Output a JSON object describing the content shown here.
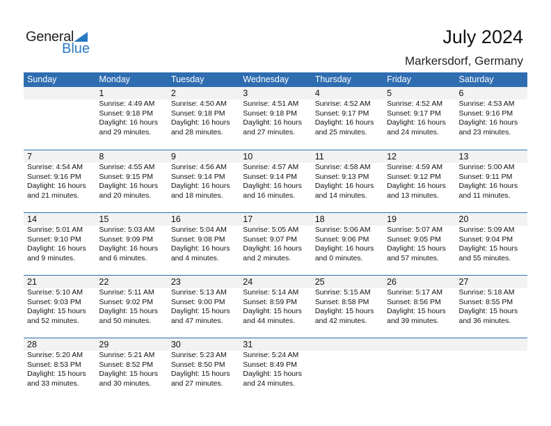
{
  "logo": {
    "general": "General",
    "blue": "Blue"
  },
  "title": "July 2024",
  "location": "Markersdorf, Germany",
  "colors": {
    "header": "#2f6db1",
    "logo_blue": "#2a7ac0",
    "band": "#f2f2f2"
  },
  "weekdays": [
    "Sunday",
    "Monday",
    "Tuesday",
    "Wednesday",
    "Thursday",
    "Friday",
    "Saturday"
  ],
  "weeks": [
    [
      null,
      {
        "day": "1",
        "sunrise": "Sunrise: 4:49 AM",
        "sunset": "Sunset: 9:18 PM",
        "daylight1": "Daylight: 16 hours",
        "daylight2": "and 29 minutes."
      },
      {
        "day": "2",
        "sunrise": "Sunrise: 4:50 AM",
        "sunset": "Sunset: 9:18 PM",
        "daylight1": "Daylight: 16 hours",
        "daylight2": "and 28 minutes."
      },
      {
        "day": "3",
        "sunrise": "Sunrise: 4:51 AM",
        "sunset": "Sunset: 9:18 PM",
        "daylight1": "Daylight: 16 hours",
        "daylight2": "and 27 minutes."
      },
      {
        "day": "4",
        "sunrise": "Sunrise: 4:52 AM",
        "sunset": "Sunset: 9:17 PM",
        "daylight1": "Daylight: 16 hours",
        "daylight2": "and 25 minutes."
      },
      {
        "day": "5",
        "sunrise": "Sunrise: 4:52 AM",
        "sunset": "Sunset: 9:17 PM",
        "daylight1": "Daylight: 16 hours",
        "daylight2": "and 24 minutes."
      },
      {
        "day": "6",
        "sunrise": "Sunrise: 4:53 AM",
        "sunset": "Sunset: 9:16 PM",
        "daylight1": "Daylight: 16 hours",
        "daylight2": "and 23 minutes."
      }
    ],
    [
      {
        "day": "7",
        "sunrise": "Sunrise: 4:54 AM",
        "sunset": "Sunset: 9:16 PM",
        "daylight1": "Daylight: 16 hours",
        "daylight2": "and 21 minutes."
      },
      {
        "day": "8",
        "sunrise": "Sunrise: 4:55 AM",
        "sunset": "Sunset: 9:15 PM",
        "daylight1": "Daylight: 16 hours",
        "daylight2": "and 20 minutes."
      },
      {
        "day": "9",
        "sunrise": "Sunrise: 4:56 AM",
        "sunset": "Sunset: 9:14 PM",
        "daylight1": "Daylight: 16 hours",
        "daylight2": "and 18 minutes."
      },
      {
        "day": "10",
        "sunrise": "Sunrise: 4:57 AM",
        "sunset": "Sunset: 9:14 PM",
        "daylight1": "Daylight: 16 hours",
        "daylight2": "and 16 minutes."
      },
      {
        "day": "11",
        "sunrise": "Sunrise: 4:58 AM",
        "sunset": "Sunset: 9:13 PM",
        "daylight1": "Daylight: 16 hours",
        "daylight2": "and 14 minutes."
      },
      {
        "day": "12",
        "sunrise": "Sunrise: 4:59 AM",
        "sunset": "Sunset: 9:12 PM",
        "daylight1": "Daylight: 16 hours",
        "daylight2": "and 13 minutes."
      },
      {
        "day": "13",
        "sunrise": "Sunrise: 5:00 AM",
        "sunset": "Sunset: 9:11 PM",
        "daylight1": "Daylight: 16 hours",
        "daylight2": "and 11 minutes."
      }
    ],
    [
      {
        "day": "14",
        "sunrise": "Sunrise: 5:01 AM",
        "sunset": "Sunset: 9:10 PM",
        "daylight1": "Daylight: 16 hours",
        "daylight2": "and 9 minutes."
      },
      {
        "day": "15",
        "sunrise": "Sunrise: 5:03 AM",
        "sunset": "Sunset: 9:09 PM",
        "daylight1": "Daylight: 16 hours",
        "daylight2": "and 6 minutes."
      },
      {
        "day": "16",
        "sunrise": "Sunrise: 5:04 AM",
        "sunset": "Sunset: 9:08 PM",
        "daylight1": "Daylight: 16 hours",
        "daylight2": "and 4 minutes."
      },
      {
        "day": "17",
        "sunrise": "Sunrise: 5:05 AM",
        "sunset": "Sunset: 9:07 PM",
        "daylight1": "Daylight: 16 hours",
        "daylight2": "and 2 minutes."
      },
      {
        "day": "18",
        "sunrise": "Sunrise: 5:06 AM",
        "sunset": "Sunset: 9:06 PM",
        "daylight1": "Daylight: 16 hours",
        "daylight2": "and 0 minutes."
      },
      {
        "day": "19",
        "sunrise": "Sunrise: 5:07 AM",
        "sunset": "Sunset: 9:05 PM",
        "daylight1": "Daylight: 15 hours",
        "daylight2": "and 57 minutes."
      },
      {
        "day": "20",
        "sunrise": "Sunrise: 5:09 AM",
        "sunset": "Sunset: 9:04 PM",
        "daylight1": "Daylight: 15 hours",
        "daylight2": "and 55 minutes."
      }
    ],
    [
      {
        "day": "21",
        "sunrise": "Sunrise: 5:10 AM",
        "sunset": "Sunset: 9:03 PM",
        "daylight1": "Daylight: 15 hours",
        "daylight2": "and 52 minutes."
      },
      {
        "day": "22",
        "sunrise": "Sunrise: 5:11 AM",
        "sunset": "Sunset: 9:02 PM",
        "daylight1": "Daylight: 15 hours",
        "daylight2": "and 50 minutes."
      },
      {
        "day": "23",
        "sunrise": "Sunrise: 5:13 AM",
        "sunset": "Sunset: 9:00 PM",
        "daylight1": "Daylight: 15 hours",
        "daylight2": "and 47 minutes."
      },
      {
        "day": "24",
        "sunrise": "Sunrise: 5:14 AM",
        "sunset": "Sunset: 8:59 PM",
        "daylight1": "Daylight: 15 hours",
        "daylight2": "and 44 minutes."
      },
      {
        "day": "25",
        "sunrise": "Sunrise: 5:15 AM",
        "sunset": "Sunset: 8:58 PM",
        "daylight1": "Daylight: 15 hours",
        "daylight2": "and 42 minutes."
      },
      {
        "day": "26",
        "sunrise": "Sunrise: 5:17 AM",
        "sunset": "Sunset: 8:56 PM",
        "daylight1": "Daylight: 15 hours",
        "daylight2": "and 39 minutes."
      },
      {
        "day": "27",
        "sunrise": "Sunrise: 5:18 AM",
        "sunset": "Sunset: 8:55 PM",
        "daylight1": "Daylight: 15 hours",
        "daylight2": "and 36 minutes."
      }
    ],
    [
      {
        "day": "28",
        "sunrise": "Sunrise: 5:20 AM",
        "sunset": "Sunset: 8:53 PM",
        "daylight1": "Daylight: 15 hours",
        "daylight2": "and 33 minutes."
      },
      {
        "day": "29",
        "sunrise": "Sunrise: 5:21 AM",
        "sunset": "Sunset: 8:52 PM",
        "daylight1": "Daylight: 15 hours",
        "daylight2": "and 30 minutes."
      },
      {
        "day": "30",
        "sunrise": "Sunrise: 5:23 AM",
        "sunset": "Sunset: 8:50 PM",
        "daylight1": "Daylight: 15 hours",
        "daylight2": "and 27 minutes."
      },
      {
        "day": "31",
        "sunrise": "Sunrise: 5:24 AM",
        "sunset": "Sunset: 8:49 PM",
        "daylight1": "Daylight: 15 hours",
        "daylight2": "and 24 minutes."
      },
      null,
      null,
      null
    ]
  ]
}
